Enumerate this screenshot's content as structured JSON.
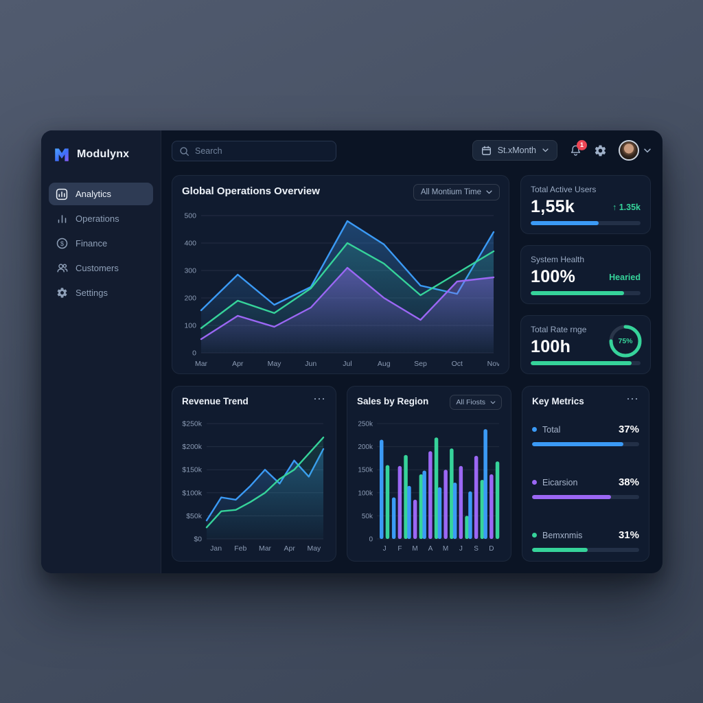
{
  "brand": {
    "name": "Modulynx"
  },
  "palette": {
    "blue": "#3b9af5",
    "green": "#36d39a",
    "purple": "#9b67f4",
    "red": "#ee4655",
    "text_muted": "#8b9bb4",
    "card_bg": "#101b2f",
    "panel_bg": "#0b1424"
  },
  "icons": [
    "logo-m-icon",
    "analytics-icon",
    "operations-bars-icon",
    "finance-dollar-icon",
    "customers-icon",
    "gear-icon",
    "search-icon",
    "calendar-icon",
    "chevron-down-icon",
    "bell-icon",
    "dots-menu-icon",
    "arrow-up-icon",
    "avatar"
  ],
  "sidebar": {
    "items": [
      {
        "label": "Analytics",
        "active": true
      },
      {
        "label": "Operations",
        "active": false
      },
      {
        "label": "Finance",
        "active": false
      },
      {
        "label": "Customers",
        "active": false
      },
      {
        "label": "Settings",
        "active": false
      }
    ]
  },
  "topbar": {
    "search_placeholder": "Search",
    "date_range_label": "St.xMonth",
    "notification_count": "1"
  },
  "overview_card": {
    "title": "Global Operations Overview",
    "filter_label": "All Montium Time"
  },
  "stat_cards": [
    {
      "title": "Total Active Users",
      "value": "1,55k",
      "delta": "↑ 1.35k",
      "bar_fill": 62,
      "bar_color": "blue"
    },
    {
      "title": "System Health",
      "value": "100%",
      "status": "Hearied",
      "bar_fill": 85,
      "bar_color": "green"
    },
    {
      "title": "Total Rate rnge",
      "value": "100h",
      "donut_pct": 75,
      "donut_label": "75%",
      "bar_fill": 92,
      "bar_color": "green"
    }
  ],
  "revenue_card": {
    "title": "Revenue Trend",
    "menu": "⋯"
  },
  "sales_card": {
    "title": "Sales by Region",
    "filter_label": "All Fiosts"
  },
  "key_metrics_card": {
    "title": "Key Metrics",
    "menu": "⋯",
    "metrics": [
      {
        "label": "Total",
        "value": "37%",
        "color": "blue",
        "bar_fill": 85
      },
      {
        "label": "Eicarsion",
        "value": "38%",
        "color": "purple",
        "bar_fill": 74
      },
      {
        "label": "Bemxnmis",
        "value": "31%",
        "color": "green",
        "bar_fill": 52
      }
    ]
  },
  "chart_data": [
    {
      "type": "line",
      "title": "Global Operations Overview",
      "categories": [
        "Mar",
        "Apr",
        "May",
        "Jun",
        "Jul",
        "Aug",
        "Sep",
        "Oct",
        "Nov"
      ],
      "ymax": 500,
      "yticks": [
        "0",
        "100",
        "200",
        "300",
        "400",
        "500"
      ],
      "grid": true,
      "legend": "none",
      "series": [
        {
          "name": "blue-series",
          "color": "blue",
          "fill_opacity": 0.32,
          "values": [
            155,
            285,
            175,
            240,
            480,
            395,
            245,
            215,
            440
          ]
        },
        {
          "name": "green-series",
          "color": "green",
          "fill_opacity": 0.16,
          "values": [
            90,
            190,
            145,
            235,
            400,
            325,
            210,
            290,
            370
          ]
        },
        {
          "name": "purple-series",
          "color": "purple",
          "fill_opacity": 0.42,
          "values": [
            50,
            135,
            95,
            165,
            310,
            200,
            120,
            260,
            275
          ]
        }
      ]
    },
    {
      "type": "line",
      "title": "Revenue Trend",
      "categories": [
        "Jan",
        "Feb",
        "Mar",
        "Apr",
        "May"
      ],
      "ymax": 250,
      "yticks": [
        "$0",
        "$50k",
        "$100k",
        "$150k",
        "$200k",
        "$250k"
      ],
      "grid": true,
      "legend": "none",
      "unit": "k USD",
      "series": [
        {
          "name": "blue-series",
          "color": "blue",
          "fill_opacity": 0.3,
          "values": [
            40,
            90,
            85,
            115,
            150,
            120,
            170,
            135,
            195
          ]
        },
        {
          "name": "green-series",
          "color": "green",
          "fill_opacity": 0.14,
          "values": [
            25,
            60,
            63,
            80,
            100,
            130,
            150,
            185,
            220
          ]
        }
      ]
    },
    {
      "type": "bar",
      "title": "Sales by Region",
      "ymax": 250,
      "yticks": [
        "0",
        "50k",
        "100k",
        "150k",
        "200k",
        "250k"
      ],
      "grid": true,
      "legend": "none",
      "unit": "k",
      "groups": [
        {
          "label": "J",
          "bars": [
            {
              "c": "blue",
              "v": 215
            },
            {
              "c": "green",
              "v": 160
            }
          ]
        },
        {
          "label": "F",
          "bars": [
            {
              "c": "blue",
              "v": 90
            },
            {
              "c": "purple",
              "v": 158
            },
            {
              "c": "green",
              "v": 182
            }
          ]
        },
        {
          "label": "M",
          "bars": [
            {
              "c": "blue",
              "v": 115
            },
            {
              "c": "purple",
              "v": 85
            },
            {
              "c": "green",
              "v": 140
            }
          ]
        },
        {
          "label": "A",
          "bars": [
            {
              "c": "blue",
              "v": 148
            },
            {
              "c": "purple",
              "v": 190
            },
            {
              "c": "green",
              "v": 220
            }
          ]
        },
        {
          "label": "M",
          "bars": [
            {
              "c": "blue",
              "v": 112
            },
            {
              "c": "purple",
              "v": 150
            },
            {
              "c": "green",
              "v": 196
            }
          ]
        },
        {
          "label": "J",
          "bars": [
            {
              "c": "blue",
              "v": 122
            },
            {
              "c": "purple",
              "v": 158
            },
            {
              "c": "green",
              "v": 50
            }
          ]
        },
        {
          "label": "S",
          "bars": [
            {
              "c": "blue",
              "v": 103
            },
            {
              "c": "purple",
              "v": 180
            },
            {
              "c": "green",
              "v": 128
            }
          ]
        },
        {
          "label": "D",
          "bars": [
            {
              "c": "blue",
              "v": 238
            },
            {
              "c": "purple",
              "v": 140
            },
            {
              "c": "green",
              "v": 168
            }
          ]
        }
      ]
    }
  ]
}
